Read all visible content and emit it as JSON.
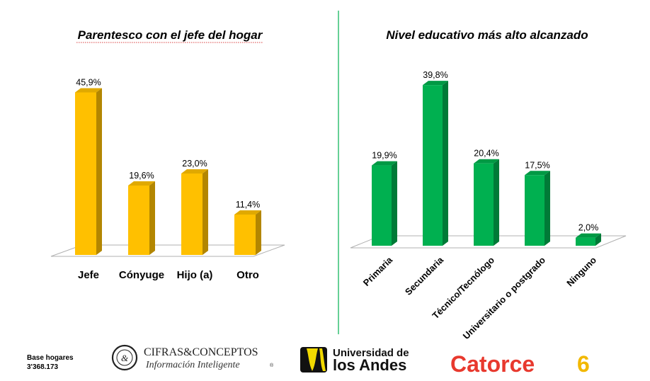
{
  "chart_data": [
    {
      "type": "bar",
      "title": "Parentesco con el jefe del hogar",
      "categories": [
        "Jefe",
        "Cónyuge",
        "Hijo (a)",
        "Otro"
      ],
      "values": [
        45.9,
        19.6,
        23.0,
        11.4
      ],
      "value_labels": [
        "45,9%",
        "19,6%",
        "23,0%",
        "11,4%"
      ],
      "ylim": [
        0,
        46
      ],
      "grid": false,
      "style": "3d",
      "colors": {
        "front": "#FFC000",
        "side": "#B38600",
        "top": "#E0A900"
      }
    },
    {
      "type": "bar",
      "title": "Nivel educativo más alto alcanzado",
      "categories": [
        "Primaria",
        "Secundaria",
        "Técnico/Tecnólogo",
        "Universitario o postgrado",
        "Ninguno"
      ],
      "values": [
        19.9,
        39.8,
        20.4,
        17.5,
        2.0
      ],
      "value_labels": [
        "19,9%",
        "39,8%",
        "20,4%",
        "17,5%",
        "2,0%"
      ],
      "ylim": [
        0,
        40
      ],
      "grid": false,
      "style": "3d",
      "colors": {
        "front": "#00B050",
        "side": "#007A37",
        "top": "#009944"
      }
    }
  ],
  "footer": {
    "base_label": "Base hogares",
    "base_value": "3'368.173",
    "logos": {
      "cifras_name": "CIFRAS&CONCEPTOS",
      "cifras_tagline": "Información Inteligente",
      "cifras_mark": "&",
      "uniandes_line1": "Universidad de",
      "uniandes_line2": "los Andes",
      "catorce": "Catorce",
      "catorce_num": "6"
    }
  },
  "divider_color": "#00B050",
  "accent_red": "#E8392E"
}
